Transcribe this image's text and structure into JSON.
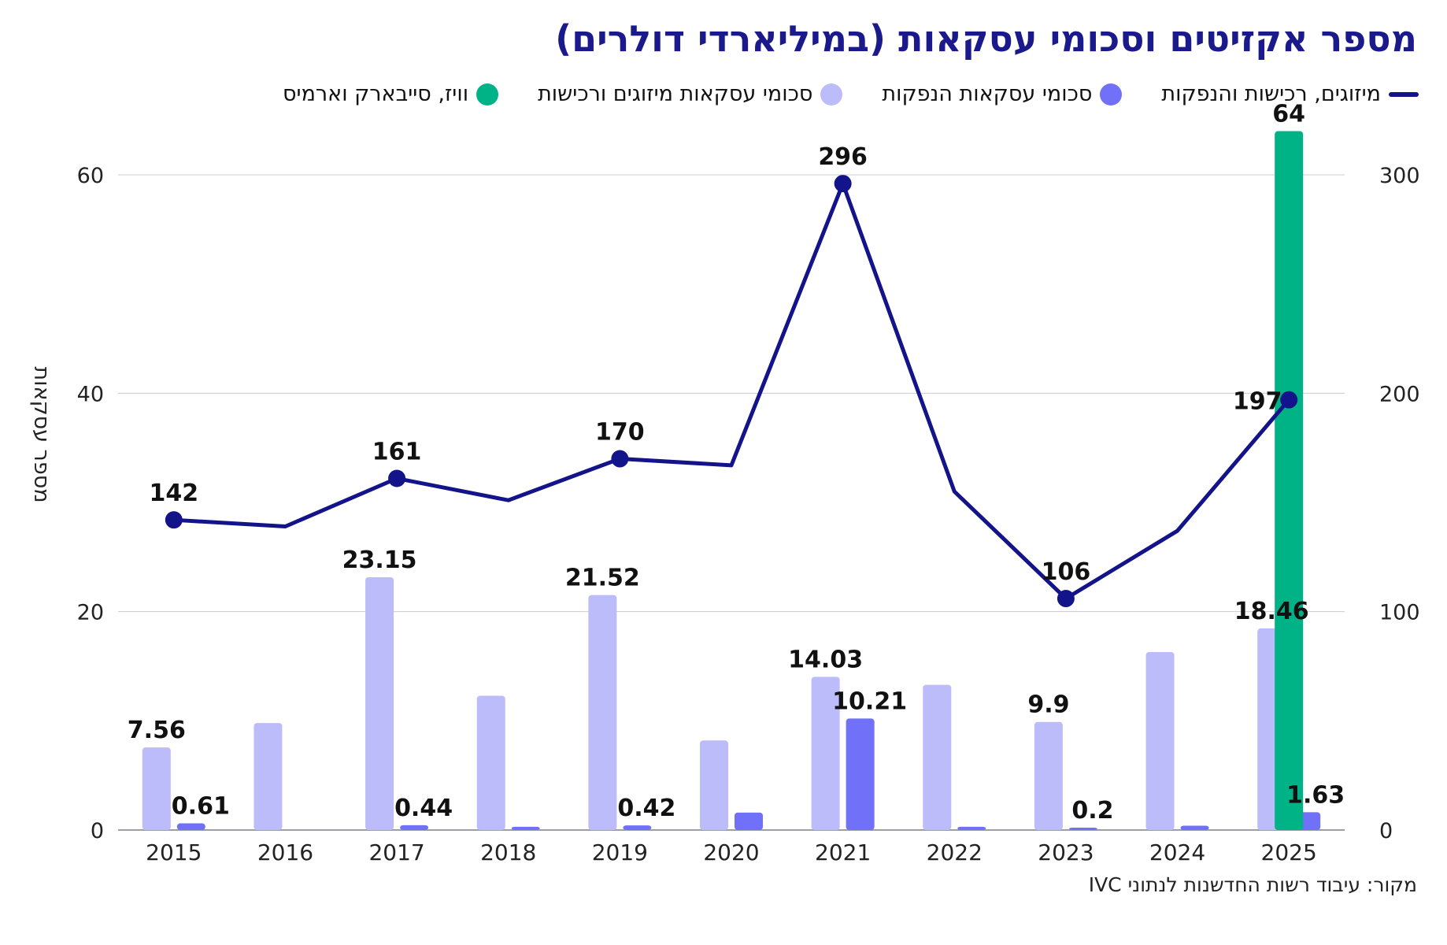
{
  "header": {
    "title": "מספר אקזיטים וסכומי עסקאות (במיליארדי דולרים)"
  },
  "legend": [
    {
      "label": "מיזוגים, רכישות והנפקות",
      "shape": "line",
      "color": "#14148a"
    },
    {
      "label": "סכומי עסקאות הנפקות",
      "shape": "dot",
      "color": "#7070f8"
    },
    {
      "label": "סכומי עסקאות מיזוגים ורכישות",
      "shape": "dot",
      "color": "#bcbcfa"
    },
    {
      "label": "וויז, סייבארק וארמיס",
      "shape": "dot",
      "color": "#00b386"
    }
  ],
  "footer": {
    "source": "מקור: עיבוד רשות החדשנות לנתוני IVC"
  },
  "chart_data": {
    "type": "bar",
    "title": "מספר אקזיטים וסכומי עסקאות (במיליארדי דולרים)",
    "categories": [
      "2015",
      "2016",
      "2017",
      "2018",
      "2019",
      "2020",
      "2021",
      "2022",
      "2023",
      "2024",
      "2025"
    ],
    "ylabel": "מספר עסקאות",
    "ylim": [
      0,
      60
    ],
    "y2lim": [
      0,
      300
    ],
    "yticks": [
      0,
      20,
      40,
      60
    ],
    "y2ticks": [
      0,
      100,
      200,
      300
    ],
    "grid": true,
    "legend_position": "top",
    "series": [
      {
        "name": "סכומי עסקאות מיזוגים ורכישות",
        "type": "bar",
        "axis": "left",
        "color": "#bcbcfa",
        "values": [
          7.56,
          9.8,
          23.15,
          12.3,
          21.52,
          8.2,
          14.03,
          13.3,
          9.9,
          16.3,
          18.46
        ],
        "labels": [
          "7.56",
          "",
          "23.15",
          "",
          "21.52",
          "",
          "14.03",
          "",
          "9.9",
          "",
          "18.46"
        ]
      },
      {
        "name": "סכומי עסקאות הנפקות",
        "type": "bar",
        "axis": "left",
        "color": "#7070f8",
        "values": [
          0.61,
          0,
          0.44,
          0.3,
          0.42,
          1.6,
          10.21,
          0.3,
          0.2,
          0.4,
          1.63
        ],
        "labels": [
          "0.61",
          "",
          "0.44",
          "",
          "0.42",
          "",
          "10.21",
          "",
          "0.2",
          "",
          "1.63"
        ]
      },
      {
        "name": "וויז, סייבארק וארמיס",
        "type": "bar",
        "axis": "left",
        "color": "#00b386",
        "values": [
          null,
          null,
          null,
          null,
          null,
          null,
          null,
          null,
          null,
          null,
          64
        ],
        "labels": [
          "",
          "",
          "",
          "",
          "",
          "",
          "",
          "",
          "",
          "",
          "64"
        ]
      },
      {
        "name": "מיזוגים, רכישות והנפקות",
        "type": "line",
        "axis": "right",
        "color": "#14148a",
        "values": [
          142,
          139,
          161,
          151,
          170,
          167,
          296,
          155,
          106,
          137,
          197
        ],
        "labels": [
          "142",
          "",
          "161",
          "",
          "170",
          "",
          "296",
          "",
          "106",
          "",
          "197"
        ]
      }
    ]
  }
}
